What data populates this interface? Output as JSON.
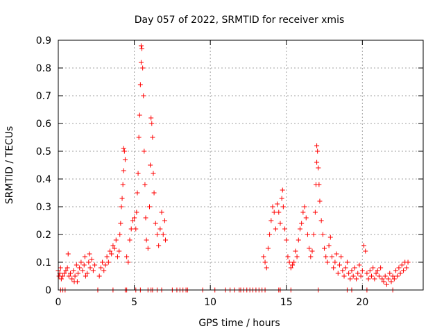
{
  "chart_data": {
    "type": "scatter",
    "title": "Day 057 of 2022, SRMTID for receiver xmis",
    "xlabel": "GPS time / hours",
    "ylabel": "SRMTID / TECUs",
    "xlim": [
      0,
      24
    ],
    "ylim": [
      0,
      0.9
    ],
    "x_ticks": [
      "0",
      "5",
      "10",
      "15",
      "20"
    ],
    "y_ticks": [
      "0",
      "0.1",
      "0.2",
      "0.3",
      "0.4",
      "0.5",
      "0.6",
      "0.7",
      "0.8",
      "0.9"
    ],
    "grid": true,
    "marker": "+",
    "color": "#ff0000",
    "series": [
      {
        "name": "SRMTID",
        "points": [
          [
            0.0,
            0.07
          ],
          [
            0.05,
            0.05
          ],
          [
            0.1,
            0.06
          ],
          [
            0.15,
            0.08
          ],
          [
            0.2,
            0.04
          ],
          [
            0.3,
            0.05
          ],
          [
            0.4,
            0.06
          ],
          [
            0.5,
            0.07
          ],
          [
            0.6,
            0.08
          ],
          [
            0.65,
            0.13
          ],
          [
            0.7,
            0.05
          ],
          [
            0.8,
            0.06
          ],
          [
            0.9,
            0.04
          ],
          [
            1.0,
            0.07
          ],
          [
            1.05,
            0.03
          ],
          [
            1.1,
            0.05
          ],
          [
            1.2,
            0.09
          ],
          [
            1.25,
            0.03
          ],
          [
            1.3,
            0.06
          ],
          [
            1.4,
            0.08
          ],
          [
            1.5,
            0.1
          ],
          [
            1.6,
            0.07
          ],
          [
            1.7,
            0.09
          ],
          [
            1.75,
            0.12
          ],
          [
            1.8,
            0.05
          ],
          [
            1.9,
            0.06
          ],
          [
            2.0,
            0.1
          ],
          [
            2.05,
            0.13
          ],
          [
            2.1,
            0.08
          ],
          [
            2.2,
            0.11
          ],
          [
            2.3,
            0.07
          ],
          [
            2.4,
            0.09
          ],
          [
            2.7,
            0.05
          ],
          [
            2.8,
            0.08
          ],
          [
            2.9,
            0.1
          ],
          [
            3.0,
            0.07
          ],
          [
            3.1,
            0.09
          ],
          [
            3.2,
            0.12
          ],
          [
            3.3,
            0.1
          ],
          [
            3.4,
            0.14
          ],
          [
            3.5,
            0.13
          ],
          [
            3.6,
            0.16
          ],
          [
            3.7,
            0.15
          ],
          [
            3.8,
            0.18
          ],
          [
            3.9,
            0.12
          ],
          [
            4.0,
            0.14
          ],
          [
            4.05,
            0.2
          ],
          [
            4.1,
            0.24
          ],
          [
            4.15,
            0.3
          ],
          [
            4.2,
            0.33
          ],
          [
            4.25,
            0.38
          ],
          [
            4.3,
            0.43
          ],
          [
            4.3,
            0.51
          ],
          [
            4.35,
            0.5
          ],
          [
            4.4,
            0.47
          ],
          [
            4.5,
            0.12
          ],
          [
            4.6,
            0.1
          ],
          [
            4.7,
            0.18
          ],
          [
            4.8,
            0.22
          ],
          [
            4.9,
            0.25
          ],
          [
            5.0,
            0.26
          ],
          [
            5.1,
            0.22
          ],
          [
            5.15,
            0.28
          ],
          [
            5.2,
            0.35
          ],
          [
            5.25,
            0.42
          ],
          [
            5.3,
            0.55
          ],
          [
            5.35,
            0.63
          ],
          [
            5.4,
            0.74
          ],
          [
            5.45,
            0.82
          ],
          [
            5.45,
            0.88
          ],
          [
            5.5,
            0.87
          ],
          [
            5.55,
            0.8
          ],
          [
            5.6,
            0.7
          ],
          [
            5.65,
            0.5
          ],
          [
            5.7,
            0.38
          ],
          [
            5.75,
            0.26
          ],
          [
            5.8,
            0.18
          ],
          [
            5.9,
            0.15
          ],
          [
            6.0,
            0.3
          ],
          [
            6.05,
            0.45
          ],
          [
            6.1,
            0.62
          ],
          [
            6.15,
            0.6
          ],
          [
            6.2,
            0.55
          ],
          [
            6.25,
            0.42
          ],
          [
            6.3,
            0.35
          ],
          [
            6.4,
            0.24
          ],
          [
            6.5,
            0.2
          ],
          [
            6.6,
            0.16
          ],
          [
            6.7,
            0.22
          ],
          [
            6.8,
            0.28
          ],
          [
            6.9,
            0.2
          ],
          [
            7.0,
            0.25
          ],
          [
            7.05,
            0.18
          ],
          [
            13.5,
            0.12
          ],
          [
            13.6,
            0.1
          ],
          [
            13.7,
            0.08
          ],
          [
            13.8,
            0.15
          ],
          [
            13.9,
            0.2
          ],
          [
            14.0,
            0.25
          ],
          [
            14.1,
            0.3
          ],
          [
            14.2,
            0.28
          ],
          [
            14.3,
            0.22
          ],
          [
            14.4,
            0.31
          ],
          [
            14.5,
            0.28
          ],
          [
            14.6,
            0.24
          ],
          [
            14.7,
            0.33
          ],
          [
            14.75,
            0.36
          ],
          [
            14.8,
            0.3
          ],
          [
            14.9,
            0.22
          ],
          [
            15.0,
            0.18
          ],
          [
            15.1,
            0.12
          ],
          [
            15.2,
            0.1
          ],
          [
            15.3,
            0.08
          ],
          [
            15.4,
            0.09
          ],
          [
            15.5,
            0.1
          ],
          [
            15.6,
            0.14
          ],
          [
            15.7,
            0.12
          ],
          [
            15.8,
            0.18
          ],
          [
            15.9,
            0.22
          ],
          [
            16.0,
            0.24
          ],
          [
            16.1,
            0.28
          ],
          [
            16.2,
            0.3
          ],
          [
            16.3,
            0.26
          ],
          [
            16.4,
            0.2
          ],
          [
            16.5,
            0.15
          ],
          [
            16.6,
            0.12
          ],
          [
            16.7,
            0.14
          ],
          [
            16.8,
            0.2
          ],
          [
            16.9,
            0.28
          ],
          [
            16.95,
            0.38
          ],
          [
            17.0,
            0.46
          ],
          [
            17.0,
            0.52
          ],
          [
            17.05,
            0.5
          ],
          [
            17.1,
            0.44
          ],
          [
            17.15,
            0.38
          ],
          [
            17.2,
            0.32
          ],
          [
            17.3,
            0.25
          ],
          [
            17.4,
            0.2
          ],
          [
            17.5,
            0.15
          ],
          [
            17.6,
            0.12
          ],
          [
            17.7,
            0.1
          ],
          [
            17.8,
            0.16
          ],
          [
            17.9,
            0.19
          ],
          [
            18.0,
            0.12
          ],
          [
            18.1,
            0.08
          ],
          [
            18.2,
            0.1
          ],
          [
            18.3,
            0.13
          ],
          [
            18.4,
            0.06
          ],
          [
            18.5,
            0.09
          ],
          [
            18.6,
            0.12
          ],
          [
            18.7,
            0.07
          ],
          [
            18.8,
            0.05
          ],
          [
            18.9,
            0.08
          ],
          [
            19.0,
            0.1
          ],
          [
            19.1,
            0.06
          ],
          [
            19.2,
            0.04
          ],
          [
            19.3,
            0.07
          ],
          [
            19.4,
            0.05
          ],
          [
            19.5,
            0.08
          ],
          [
            19.6,
            0.04
          ],
          [
            19.7,
            0.06
          ],
          [
            19.8,
            0.09
          ],
          [
            19.9,
            0.05
          ],
          [
            20.0,
            0.07
          ],
          [
            20.1,
            0.16
          ],
          [
            20.2,
            0.14
          ],
          [
            20.3,
            0.06
          ],
          [
            20.4,
            0.04
          ],
          [
            20.5,
            0.07
          ],
          [
            20.6,
            0.05
          ],
          [
            20.7,
            0.08
          ],
          [
            20.8,
            0.04
          ],
          [
            20.9,
            0.06
          ],
          [
            21.0,
            0.07
          ],
          [
            21.1,
            0.05
          ],
          [
            21.2,
            0.08
          ],
          [
            21.3,
            0.04
          ],
          [
            21.4,
            0.03
          ],
          [
            21.5,
            0.05
          ],
          [
            21.6,
            0.02
          ],
          [
            21.7,
            0.04
          ],
          [
            21.8,
            0.06
          ],
          [
            21.9,
            0.03
          ],
          [
            22.0,
            0.05
          ],
          [
            22.1,
            0.04
          ],
          [
            22.2,
            0.07
          ],
          [
            22.3,
            0.05
          ],
          [
            22.4,
            0.08
          ],
          [
            22.5,
            0.06
          ],
          [
            22.6,
            0.09
          ],
          [
            22.7,
            0.07
          ],
          [
            22.8,
            0.1
          ],
          [
            22.9,
            0.08
          ],
          [
            23.0,
            0.1
          ]
        ],
        "zeros": [
          0.15,
          0.3,
          0.45,
          2.6,
          3.6,
          4.4,
          4.5,
          5.1,
          5.4,
          5.9,
          6.1,
          6.2,
          6.5,
          6.8,
          7.5,
          7.8,
          8.0,
          8.2,
          8.4,
          8.5,
          9.5,
          10.3,
          11.0,
          11.3,
          11.6,
          11.9,
          12.0,
          12.2,
          12.4,
          12.6,
          12.8,
          13.0,
          13.2,
          13.4,
          13.6,
          14.5,
          14.6,
          15.3,
          17.1,
          19.0,
          19.3,
          20.3,
          22.0
        ]
      }
    ]
  }
}
